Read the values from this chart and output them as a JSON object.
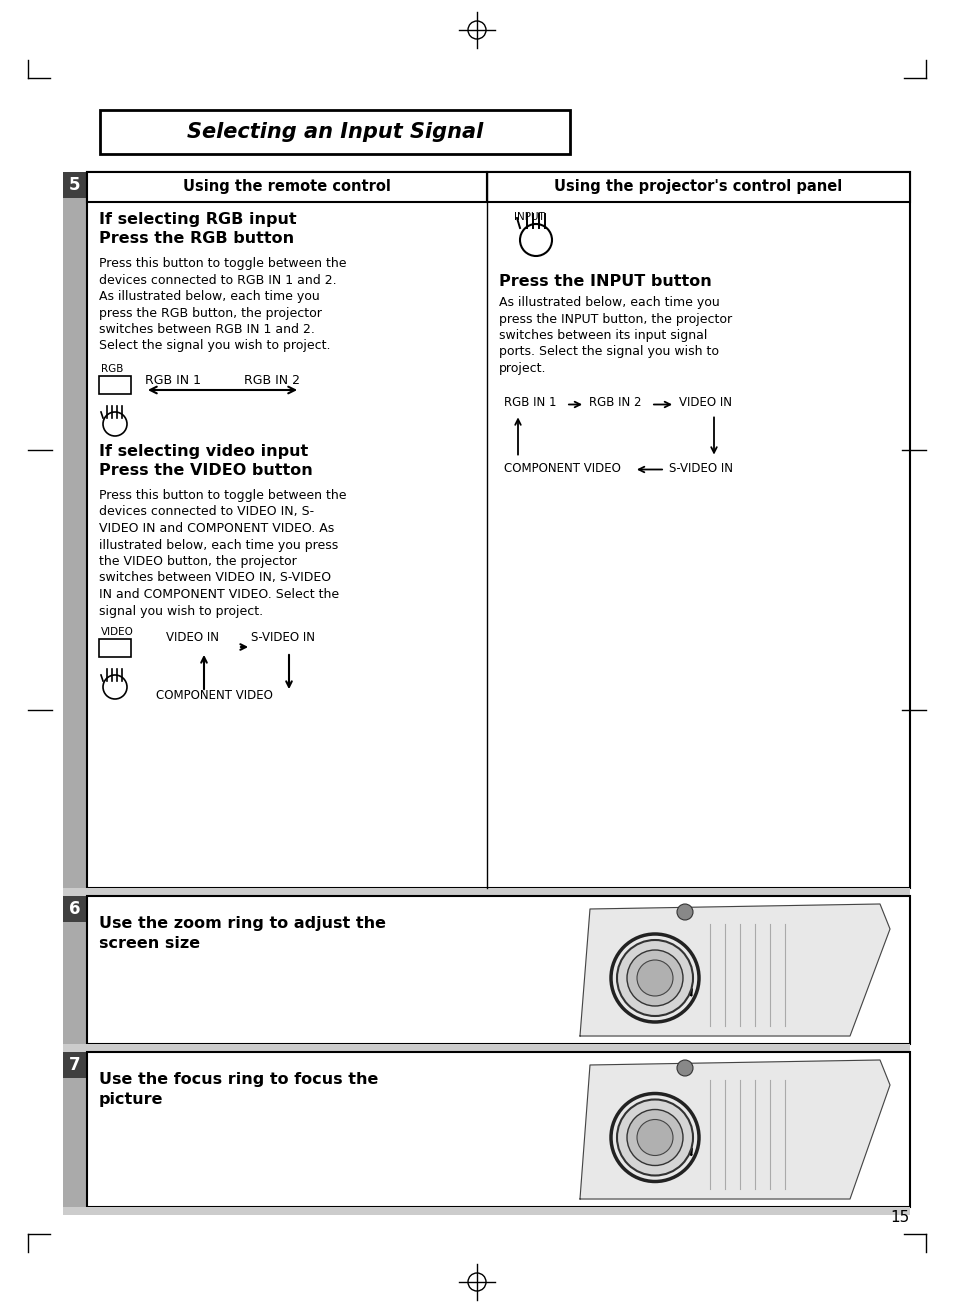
{
  "page_title": "Selecting an Input Signal",
  "step5_label": "5",
  "col1_header": "Using the remote control",
  "col2_header": "Using the projector's control panel",
  "input_heading": "Press the INPUT button",
  "input_body_lines": [
    "As illustrated below, each time you",
    "press the INPUT button, the projector",
    "switches between its input signal",
    "ports. Select the signal you wish to",
    "project."
  ],
  "rgb_heading1": "If selecting RGB input",
  "rgb_heading2": "Press the RGB button",
  "rgb_body_lines": [
    "Press this button to toggle between the",
    "devices connected to RGB IN 1 and 2.",
    "As illustrated below, each time you",
    "press the RGB button, the projector",
    "switches between RGB IN 1 and 2.",
    "Select the signal you wish to project."
  ],
  "video_heading1": "If selecting video input",
  "video_heading2": "Press the VIDEO button",
  "video_body_lines": [
    "Press this button to toggle between the",
    "devices connected to VIDEO IN, S-",
    "VIDEO IN and COMPONENT VIDEO. As",
    "illustrated below, each time you press",
    "the VIDEO button, the projector",
    "switches between VIDEO IN, S-VIDEO",
    "IN and COMPONENT VIDEO. Select the",
    "signal you wish to project."
  ],
  "step6_label": "6",
  "step6_line1": "Use the zoom ring to adjust the",
  "step6_line2": "screen size",
  "step7_label": "7",
  "step7_line1": "Use the focus ring to focus the",
  "step7_line2": "picture",
  "page_number": "15",
  "bg_color": "#ffffff",
  "dark_color": "#404040",
  "gray_bar_color": "#aaaaaa",
  "sep_color": "#cccccc",
  "black": "#000000",
  "white": "#ffffff"
}
